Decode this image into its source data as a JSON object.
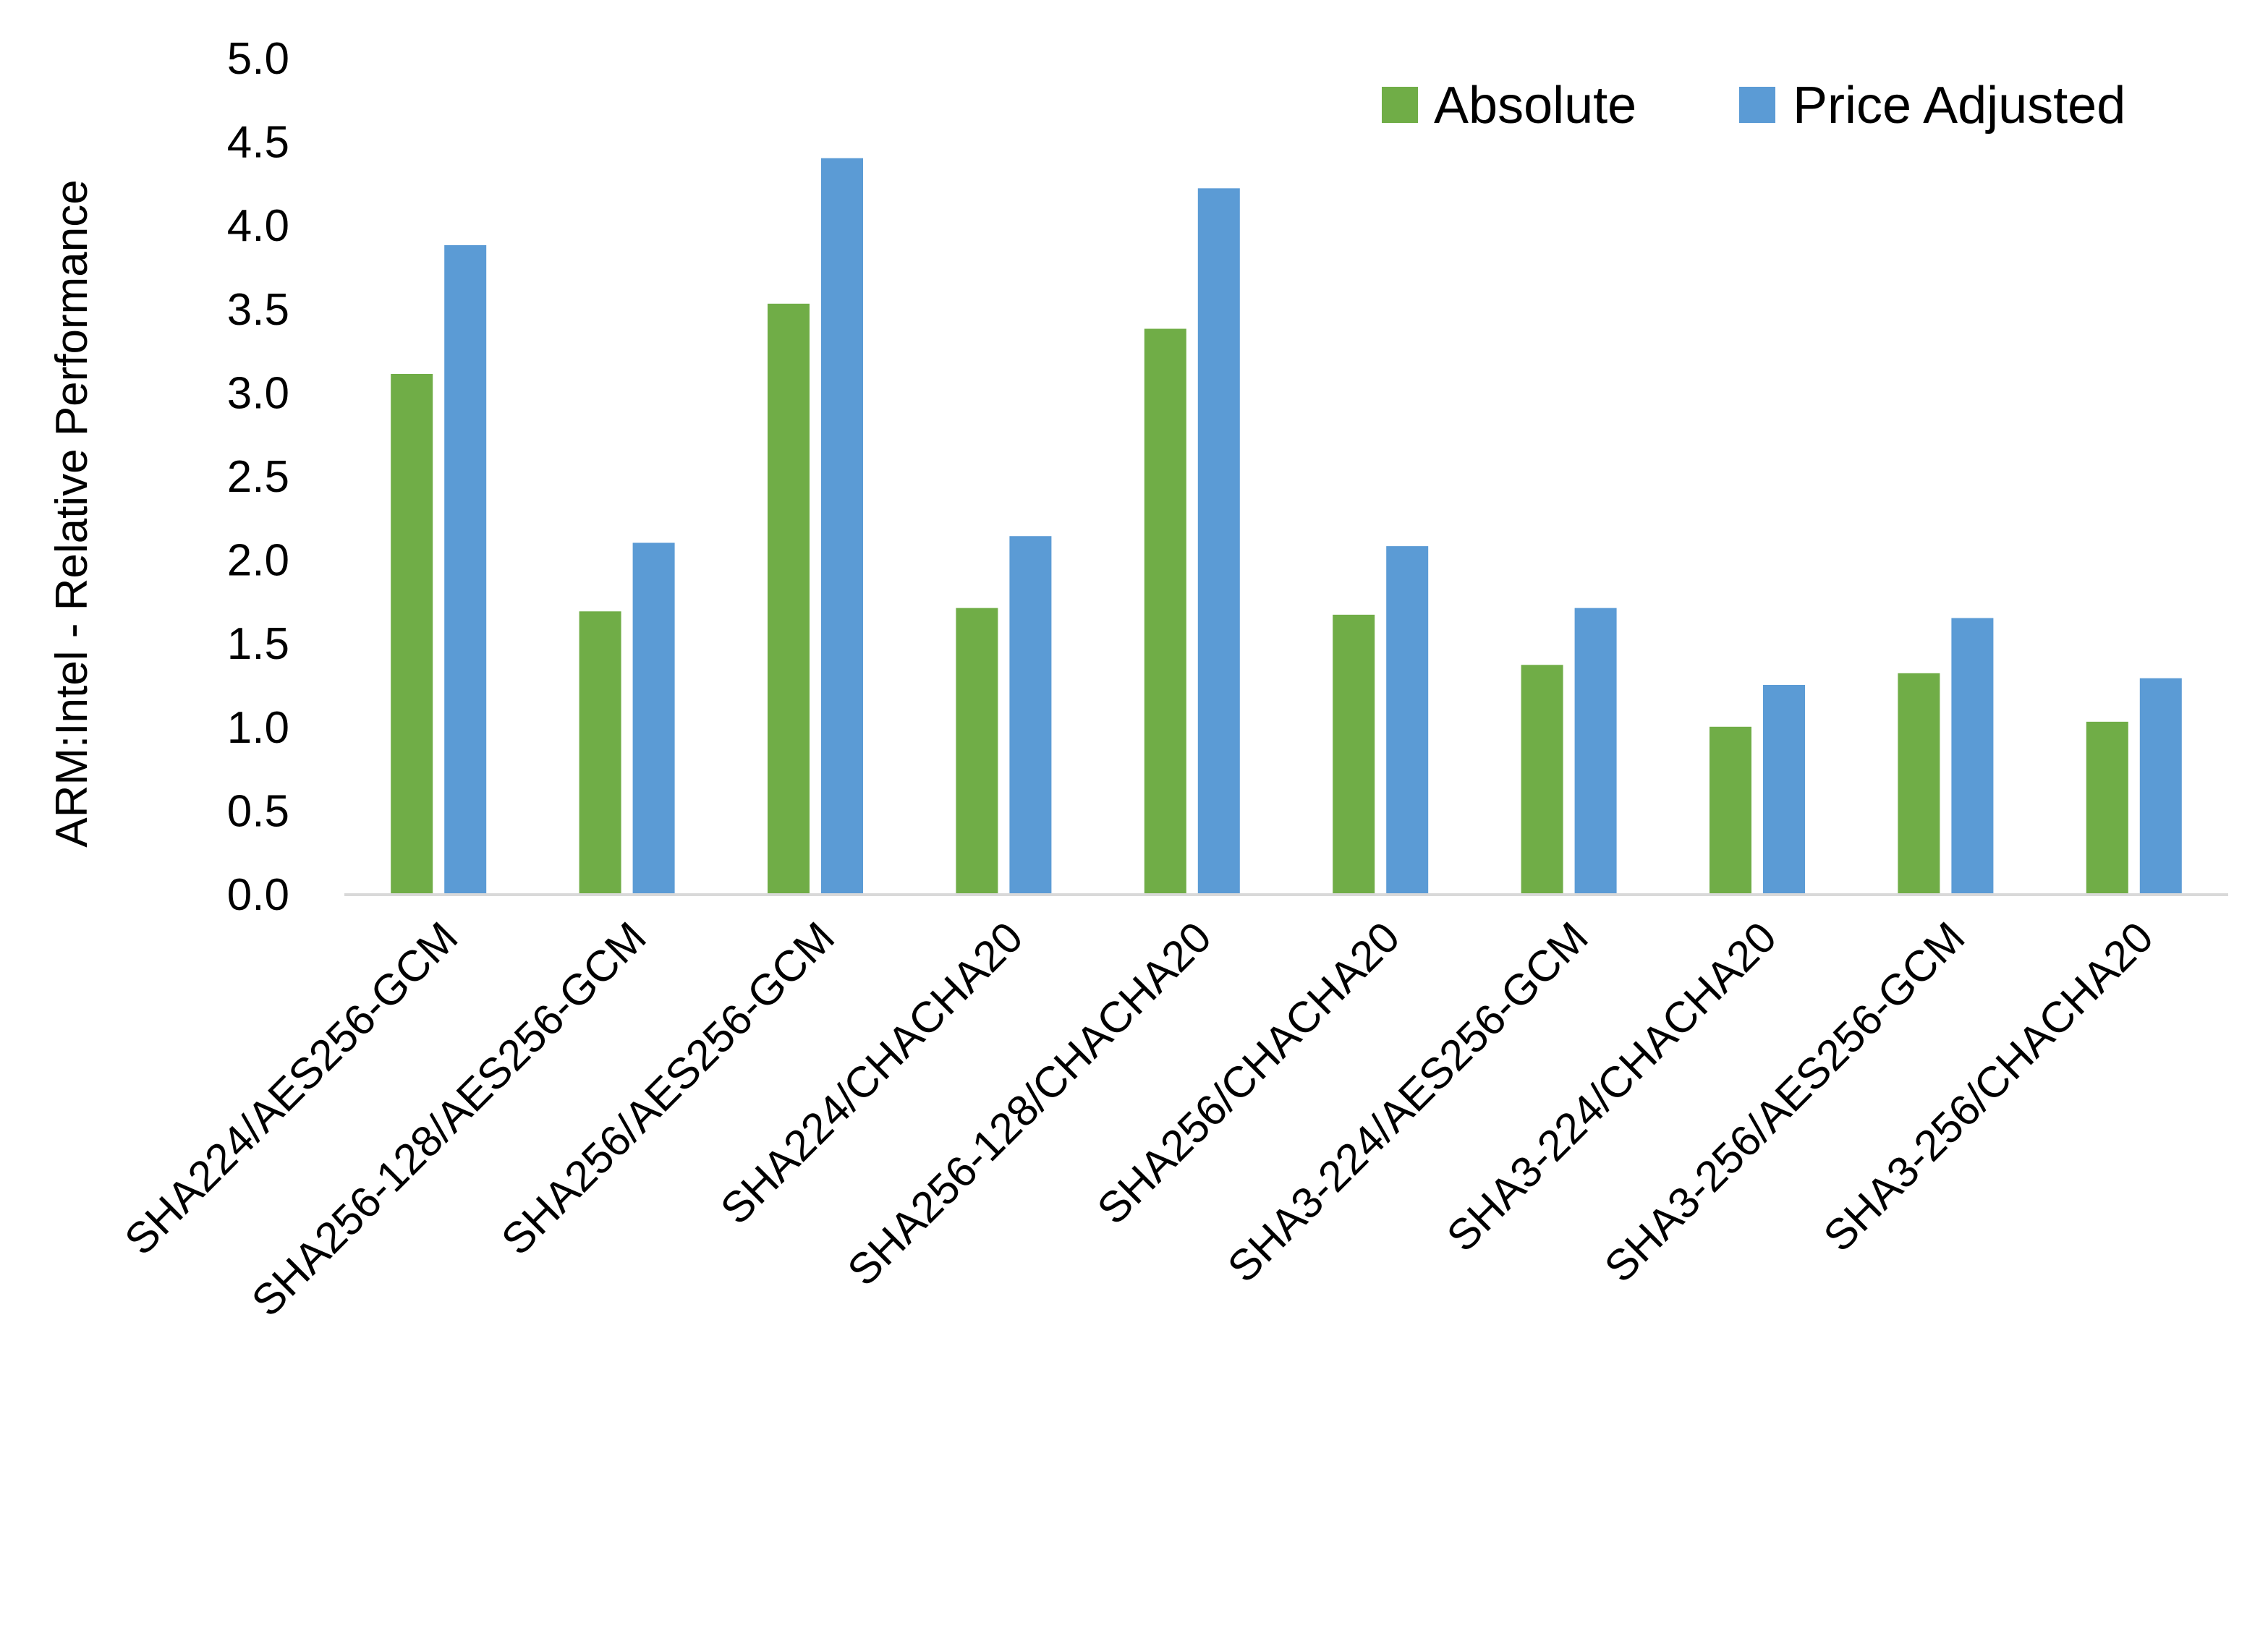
{
  "chart_data": {
    "type": "bar",
    "title": "",
    "xlabel": "",
    "ylabel": "ARM:Intel - Relative Performance",
    "ylim": [
      0,
      5.0
    ],
    "yticks": [
      "0.0",
      "0.5",
      "1.0",
      "1.5",
      "2.0",
      "2.5",
      "3.0",
      "3.5",
      "4.0",
      "4.5",
      "5.0"
    ],
    "grid": false,
    "legend_position": "top-right",
    "categories": [
      "SHA224/AES256-GCM",
      "SHA256-128/AES256-GCM",
      "SHA256/AES256-GCM",
      "SHA224/CHACHA20",
      "SHA256-128/CHACHA20",
      "SHA256/CHACHA20",
      "SHA3-224/AES256-GCM",
      "SHA3-224/CHACHA20",
      "SHA3-256/AES256-GCM",
      "SHA3-256/CHACHA20"
    ],
    "series": [
      {
        "name": "Absolute",
        "color": "#70AD47",
        "values": [
          3.11,
          1.69,
          3.53,
          1.71,
          3.38,
          1.67,
          1.37,
          1.0,
          1.32,
          1.03
        ]
      },
      {
        "name": "Price Adjusted",
        "color": "#5B9BD5",
        "values": [
          3.88,
          2.1,
          4.4,
          2.14,
          4.22,
          2.08,
          1.71,
          1.25,
          1.65,
          1.29
        ]
      }
    ],
    "axis_color": "#D9D9D9"
  }
}
